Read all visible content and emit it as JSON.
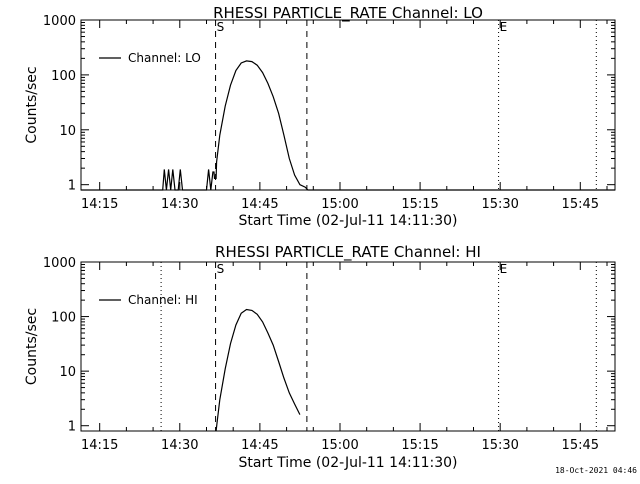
{
  "footer": {
    "timestamp": "18-Oct-2021 04:46"
  },
  "chart_data": [
    {
      "type": "line",
      "title": "RHESSI PARTICLE_RATE Channel: LO",
      "xlabel": "Start Time (02-Jul-11 14:11:30)",
      "ylabel": "Counts/sec",
      "x_unit": "minutes after 14:11:30",
      "xlim": [
        0,
        100
      ],
      "x_tick_labels": [
        "14:15",
        "14:30",
        "14:45",
        "15:00",
        "15:15",
        "15:30",
        "15:45"
      ],
      "x_tick_values": [
        3.5,
        18.5,
        33.5,
        48.5,
        63.5,
        78.5,
        93.5
      ],
      "y_scale": "log",
      "ylim": [
        0.8,
        1000
      ],
      "y_tick_labels": [
        "1",
        "10",
        "100",
        "1000"
      ],
      "y_tick_values": [
        1,
        10,
        100,
        1000
      ],
      "legend": {
        "position": "top-left",
        "entries": [
          "Channel: LO"
        ]
      },
      "series": [
        {
          "name": "Channel: LO",
          "x": [
            0,
            15.3,
            15.6,
            16.0,
            16.4,
            16.8,
            17.2,
            17.6,
            18.2,
            18.6,
            19.0,
            23.5,
            23.9,
            24.3,
            24.7,
            24.9,
            25.0,
            25.3,
            25.4,
            26.0,
            27.0,
            28.0,
            29.0,
            30.0,
            31.0,
            32.0,
            33.0,
            34.0,
            35.0,
            36.0,
            37.0,
            38.0,
            39.0,
            40.0,
            41.0,
            42.0,
            42.5,
            43.0,
            100
          ],
          "y": [
            0.8,
            0.8,
            1.9,
            0.8,
            1.9,
            0.8,
            1.9,
            0.8,
            0.8,
            1.9,
            0.8,
            0.8,
            1.9,
            0.8,
            1.7,
            1.7,
            1.3,
            1.3,
            2.6,
            8.0,
            27,
            65,
            120,
            165,
            180,
            175,
            150,
            110,
            70,
            40,
            20,
            8.0,
            3.0,
            1.5,
            1.0,
            0.9,
            0.8,
            0.8,
            0.8
          ]
        }
      ],
      "markers": [
        {
          "label": "S",
          "x": 25.2,
          "style": "dashed"
        },
        {
          "label": "",
          "x": 42.3,
          "style": "dashed"
        },
        {
          "label": "E",
          "x": 78.2,
          "style": "dotted"
        },
        {
          "label": "",
          "x": 96.5,
          "style": "dotted"
        }
      ]
    },
    {
      "type": "line",
      "title": "RHESSI PARTICLE_RATE Channel: HI",
      "xlabel": "Start Time (02-Jul-11 14:11:30)",
      "ylabel": "Counts/sec",
      "x_unit": "minutes after 14:11:30",
      "xlim": [
        0,
        100
      ],
      "x_tick_labels": [
        "14:15",
        "14:30",
        "14:45",
        "15:00",
        "15:15",
        "15:30",
        "15:45"
      ],
      "x_tick_values": [
        3.5,
        18.5,
        33.5,
        48.5,
        63.5,
        78.5,
        93.5
      ],
      "y_scale": "log",
      "ylim": [
        0.8,
        1000
      ],
      "y_tick_labels": [
        "1",
        "10",
        "100",
        "1000"
      ],
      "y_tick_values": [
        1,
        10,
        100,
        1000
      ],
      "legend": {
        "position": "top-left",
        "entries": [
          "Channel: HI"
        ]
      },
      "series": [
        {
          "name": "Channel: HI",
          "x": [
            25.3,
            25.5,
            26.0,
            27.0,
            28.0,
            29.0,
            30.0,
            31.0,
            32.0,
            33.0,
            34.0,
            35.0,
            36.0,
            37.0,
            38.0,
            39.0,
            40.0,
            41.0
          ],
          "y": [
            0.8,
            1.2,
            3.0,
            11,
            32,
            70,
            115,
            135,
            130,
            110,
            80,
            50,
            30,
            15,
            7.5,
            4.0,
            2.5,
            1.6
          ]
        }
      ],
      "markers": [
        {
          "label": "S",
          "x": 25.2,
          "style": "dashed"
        },
        {
          "label": "",
          "x": 42.3,
          "style": "dashed"
        },
        {
          "label": "",
          "x": 15.0,
          "style": "dotted"
        },
        {
          "label": "E",
          "x": 78.2,
          "style": "dotted"
        },
        {
          "label": "",
          "x": 96.5,
          "style": "dotted"
        }
      ]
    }
  ]
}
